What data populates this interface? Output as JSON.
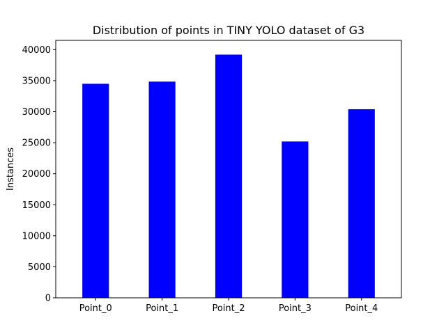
{
  "chart_data": {
    "type": "bar",
    "title": "Distribution of points in TINY YOLO dataset of G3",
    "xlabel": "",
    "ylabel": "Instances",
    "categories": [
      "Point_0",
      "Point_1",
      "Point_2",
      "Point_3",
      "Point_4"
    ],
    "values": [
      34500,
      34850,
      39200,
      25200,
      30400
    ],
    "ylim": [
      0,
      41500
    ],
    "yticks": [
      0,
      5000,
      10000,
      15000,
      20000,
      25000,
      30000,
      35000,
      40000
    ],
    "bar_color": "#0000ff",
    "grid": false
  }
}
